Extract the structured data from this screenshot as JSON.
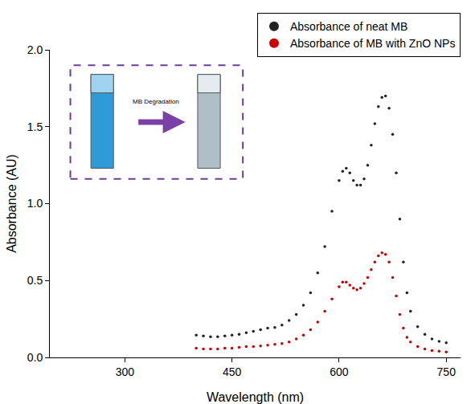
{
  "chart_data": {
    "type": "scatter",
    "x_label": "Wavelength (nm)",
    "y_label": "Absorbance (AU)",
    "x": [
      400,
      410,
      420,
      430,
      440,
      450,
      460,
      470,
      480,
      490,
      500,
      510,
      520,
      530,
      540,
      550,
      560,
      570,
      580,
      590,
      600,
      605,
      610,
      615,
      620,
      625,
      630,
      635,
      640,
      645,
      650,
      655,
      660,
      665,
      670,
      675,
      680,
      685,
      690,
      695,
      700,
      710,
      720,
      730,
      740,
      750
    ],
    "series": [
      {
        "name": "Absorbance of neat MB",
        "color": "#222222",
        "marker": "dot",
        "values": [
          0.145,
          0.14,
          0.135,
          0.135,
          0.14,
          0.145,
          0.15,
          0.16,
          0.17,
          0.18,
          0.19,
          0.195,
          0.21,
          0.24,
          0.28,
          0.34,
          0.42,
          0.55,
          0.72,
          0.95,
          1.15,
          1.21,
          1.23,
          1.2,
          1.15,
          1.12,
          1.12,
          1.16,
          1.25,
          1.38,
          1.52,
          1.63,
          1.69,
          1.7,
          1.62,
          1.45,
          1.2,
          0.9,
          0.62,
          0.42,
          0.3,
          0.2,
          0.15,
          0.12,
          0.105,
          0.095
        ]
      },
      {
        "name": "Absorbance of MB with ZnO NPs",
        "color": "#cc0000",
        "marker": "dot",
        "values": [
          0.06,
          0.055,
          0.055,
          0.055,
          0.06,
          0.06,
          0.065,
          0.07,
          0.07,
          0.075,
          0.08,
          0.085,
          0.09,
          0.1,
          0.12,
          0.145,
          0.18,
          0.23,
          0.3,
          0.38,
          0.46,
          0.49,
          0.49,
          0.47,
          0.45,
          0.44,
          0.45,
          0.48,
          0.52,
          0.57,
          0.62,
          0.66,
          0.68,
          0.67,
          0.62,
          0.52,
          0.4,
          0.28,
          0.19,
          0.13,
          0.1,
          0.07,
          0.055,
          0.045,
          0.04,
          0.035
        ]
      }
    ],
    "xlim": [
      195,
      770
    ],
    "xticks": [
      300,
      450,
      600,
      750
    ],
    "ylim": [
      0,
      2.0
    ],
    "yticks": [
      {
        "value": 0,
        "label": "0.0"
      },
      {
        "value": 0.5,
        "label": "0.5"
      },
      {
        "value": 1.0,
        "label": "1.0"
      },
      {
        "value": 1.5,
        "label": "1.5"
      },
      {
        "value": 2.0,
        "label": "2.0"
      }
    ],
    "grid": false,
    "legend": "top right",
    "annotations": [
      "MB Degradation"
    ]
  }
}
